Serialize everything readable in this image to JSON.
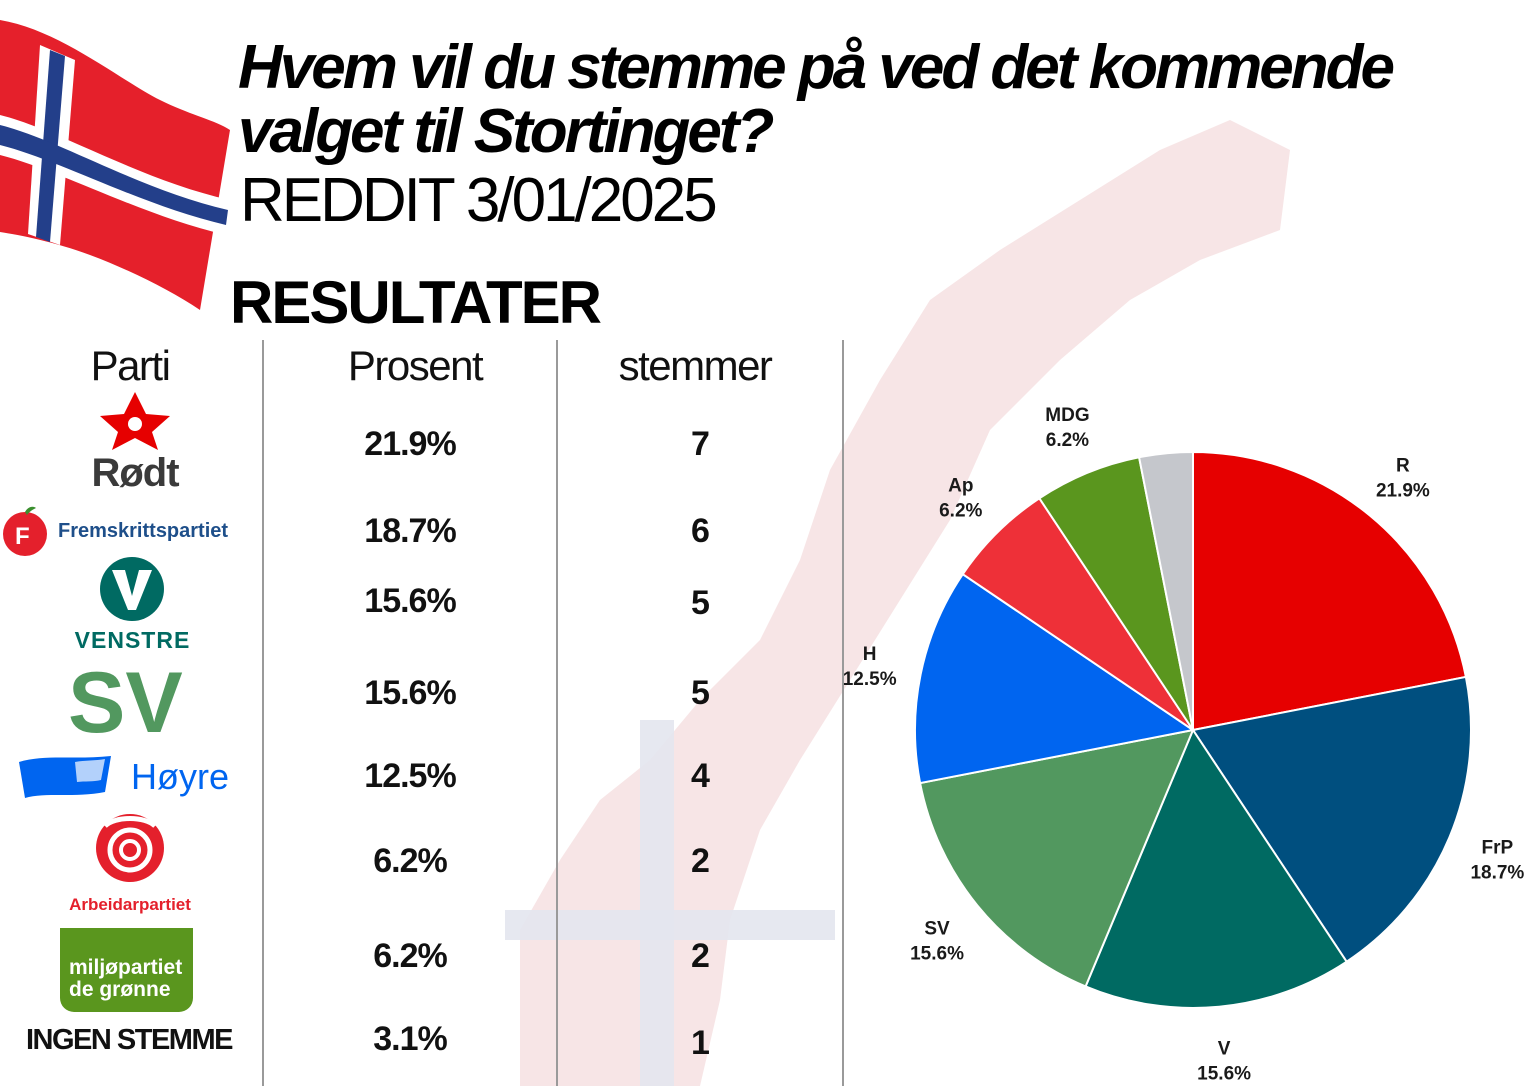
{
  "header": {
    "title": "Hvem vil du stemme på ved det kommende valget til Stortinget?",
    "subtitle": "REDDIT 3/01/2025",
    "results_heading": "RESULTATER"
  },
  "table": {
    "columns": [
      "Parti",
      "Prosent",
      "stemmer"
    ],
    "logo_texts": {
      "rodt": "Rødt",
      "frp": "Fremskrittspartiet",
      "venstre": "VENSTRE",
      "sv": "SV",
      "hoyre": "Høyre",
      "ap": "Arbeidarpartiet",
      "mdg_line1": "miljøpartiet",
      "mdg_line2": "de grønne"
    },
    "rows": [
      {
        "party": "Rødt",
        "percent": "21.9%",
        "votes": "7"
      },
      {
        "party": "Fremskrittspartiet",
        "percent": "18.7%",
        "votes": "6"
      },
      {
        "party": "Venstre",
        "percent": "15.6%",
        "votes": "5"
      },
      {
        "party": "SV",
        "percent": "15.6%",
        "votes": "5"
      },
      {
        "party": "Høyre",
        "percent": "12.5%",
        "votes": "4"
      },
      {
        "party": "Arbeidarpartiet",
        "percent": "6.2%",
        "votes": "2"
      },
      {
        "party": "Miljøpartiet De Grønne",
        "percent": "6.2%",
        "votes": "2"
      },
      {
        "party": "INGEN STEMME",
        "percent": "3.1%",
        "votes": "1"
      }
    ]
  },
  "colors": {
    "R": "#e60000",
    "FrP": "#004f7f",
    "V": "#006a62",
    "SV": "#52985f",
    "H": "#0065f0",
    "Ap": "#ee3038",
    "MDG": "#5a961e",
    "none": "#c5c7cc"
  },
  "chart_data": {
    "type": "pie",
    "title": "",
    "slices": [
      {
        "label": "R",
        "value": 21.9,
        "text": "21.9%",
        "color": "#e60000"
      },
      {
        "label": "FrP",
        "value": 18.7,
        "text": "18.7%",
        "color": "#004f7f"
      },
      {
        "label": "V",
        "value": 15.6,
        "text": "15.6%",
        "color": "#006a62"
      },
      {
        "label": "SV",
        "value": 15.6,
        "text": "15.6%",
        "color": "#52985f"
      },
      {
        "label": "H",
        "value": 12.5,
        "text": "12.5%",
        "color": "#0065f0"
      },
      {
        "label": "Ap",
        "value": 6.2,
        "text": "6.2%",
        "color": "#ee3038"
      },
      {
        "label": "MDG",
        "value": 6.2,
        "text": "6.2%",
        "color": "#5a961e"
      },
      {
        "label": "",
        "value": 3.1,
        "text": "",
        "color": "#c5c7cc"
      }
    ]
  }
}
